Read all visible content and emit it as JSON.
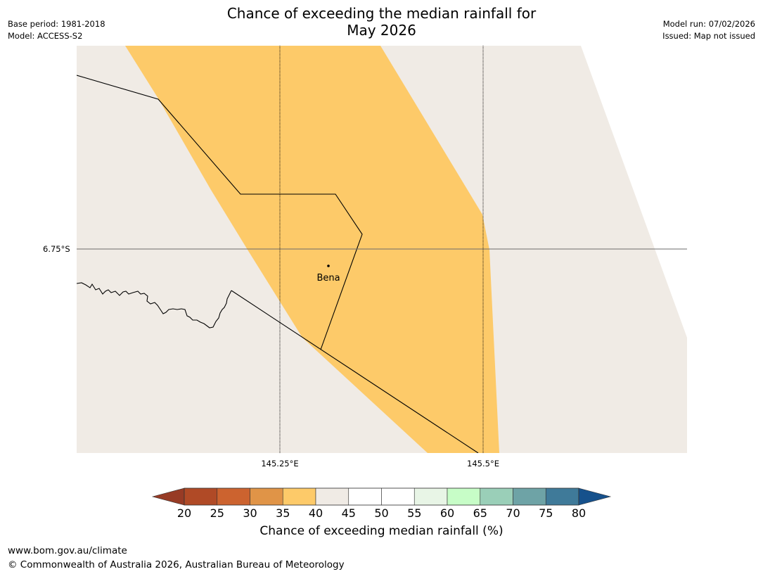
{
  "title_line1": "Chance of exceeding the median rainfall for",
  "title_line2": "May 2026",
  "meta": {
    "base_period": "Base period: 1981-2018",
    "model": "Model: ACCESS-S2",
    "model_run": "Model run: 07/02/2026",
    "issued": "Issued: Map not issued"
  },
  "axes": {
    "lat_label": "6.75°S",
    "lon_labels": [
      "145.25°E",
      "145.5°E"
    ]
  },
  "place": {
    "name": "Bena"
  },
  "colorbar": {
    "title": "Chance of exceeding median rainfall (%)",
    "ticks": [
      "20",
      "25",
      "30",
      "35",
      "40",
      "45",
      "50",
      "55",
      "60",
      "65",
      "70",
      "75",
      "80"
    ],
    "colors": [
      "#b04a26",
      "#cc632f",
      "#e09447",
      "#fdca69",
      "#f0ebe5",
      "#ffffff",
      "#ffffff",
      "#e8f5e6",
      "#c7fdc7",
      "#9acfb8",
      "#6ea3a6",
      "#3f7a99"
    ],
    "under_color": "#973b25",
    "over_color": "#16518c",
    "land_color": "#f0ebe5",
    "band_color": "#fdca69"
  },
  "footer": {
    "url": "www.bom.gov.au/climate",
    "copyright": "© Commonwealth of Australia 2026, Australian Bureau of Meteorology"
  }
}
